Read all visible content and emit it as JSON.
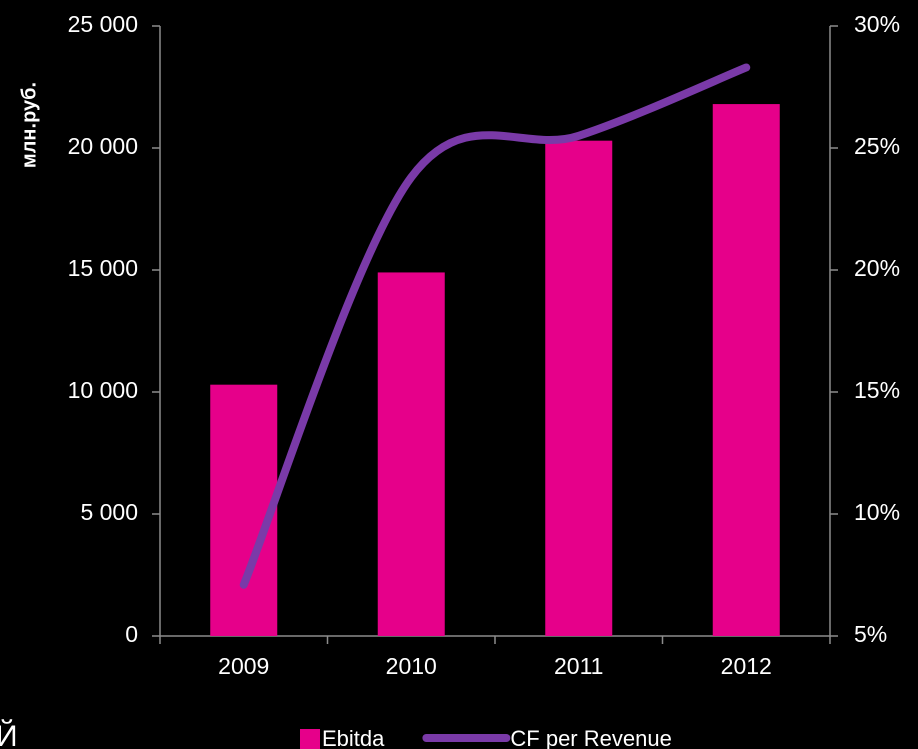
{
  "chart_data": {
    "type": "bar_line",
    "y_label": "млн.руб.",
    "annotation": "Й",
    "categories": [
      "2009",
      "2010",
      "2011",
      "2012"
    ],
    "series": [
      {
        "name": "Ebitda",
        "type": "bar",
        "color": "#e6008a",
        "values": [
          10300,
          14900,
          20300,
          21800
        ]
      },
      {
        "name": "CF per Revenue",
        "type": "line",
        "axis": "y2",
        "color": "#7a3aa8",
        "values": [
          7.1,
          23.8,
          25.5,
          28.3
        ]
      }
    ],
    "ylim": [
      0,
      25000
    ],
    "yticks": [
      0,
      {
        "value": 5000,
        "label": "5 000"
      },
      {
        "value": 10000,
        "label": "10 000"
      },
      {
        "value": 15000,
        "label": "15 000"
      },
      {
        "value": 20000,
        "label": "20 000"
      },
      {
        "value": 25000,
        "label": "25 000"
      }
    ],
    "y2lim": [
      5,
      30
    ],
    "y2ticks": [
      {
        "value": 5,
        "label": "5%"
      },
      {
        "value": 10,
        "label": "10%"
      },
      {
        "value": 15,
        "label": "15%"
      },
      {
        "value": 20,
        "label": "20%"
      },
      {
        "value": 25,
        "label": "25%"
      },
      {
        "value": 30,
        "label": "30%"
      }
    ]
  }
}
